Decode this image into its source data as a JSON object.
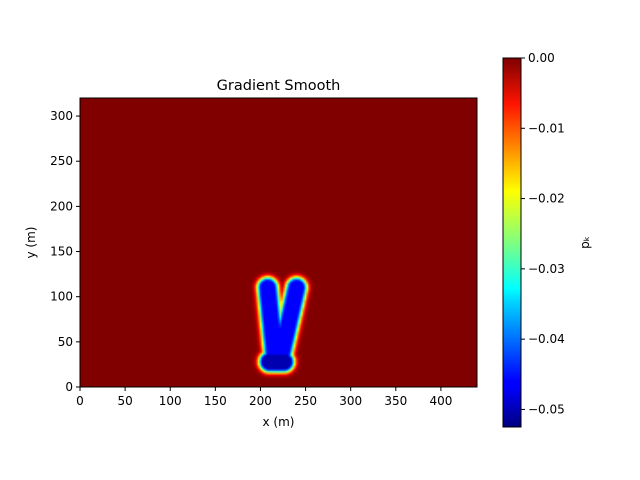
{
  "chart_data": {
    "type": "heatmap",
    "title": "Gradient Smooth",
    "xlabel": "x (m)",
    "ylabel": "y (m)",
    "colorbar_label": "pₖ",
    "colormap": "jet",
    "xlim": [
      0,
      440
    ],
    "ylim": [
      0,
      320
    ],
    "zlim": [
      -0.0525,
      0.0
    ],
    "x_ticks": [
      0,
      50,
      100,
      150,
      200,
      250,
      300,
      350,
      400
    ],
    "x_tick_labels": [
      "0",
      "50",
      "100",
      "150",
      "200",
      "250",
      "300",
      "350",
      "400"
    ],
    "y_ticks": [
      0,
      50,
      100,
      150,
      200,
      250,
      300
    ],
    "y_tick_labels": [
      "0",
      "50",
      "100",
      "150",
      "200",
      "250",
      "300"
    ],
    "colorbar_ticks": [
      0.0,
      -0.01,
      -0.02,
      -0.03,
      -0.04,
      -0.05
    ],
    "colorbar_tick_labels": [
      "0.00",
      "−0.01",
      "−0.02",
      "−0.03",
      "−0.04",
      "−0.05"
    ],
    "background_value": 0.0,
    "features": [
      {
        "shape": "segment",
        "from": [
          208,
          110
        ],
        "to": [
          216,
          30
        ],
        "value": -0.046
      },
      {
        "shape": "segment",
        "from": [
          240,
          110
        ],
        "to": [
          222,
          30
        ],
        "value": -0.046
      },
      {
        "shape": "segment",
        "from": [
          210,
          28
        ],
        "to": [
          226,
          28
        ],
        "value": -0.05
      }
    ],
    "grid": false
  }
}
